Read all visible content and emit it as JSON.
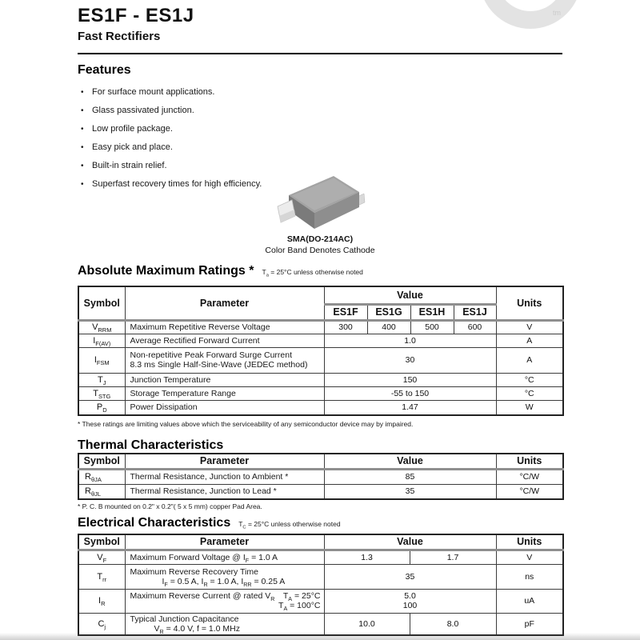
{
  "header": {
    "title": "ES1F - ES1J",
    "subtitle": "Fast Rectifiers",
    "logo_tm": "tm",
    "logo_color": "#e3e3e3"
  },
  "features": {
    "heading": "Features",
    "bullet": "•",
    "items": [
      "For surface mount applications.",
      "Glass passivated junction.",
      "Low profile package.",
      "Easy pick and place.",
      "Built-in strain relief.",
      "Superfast recovery times for high efficiency."
    ]
  },
  "package": {
    "name": "SMA(DO-214AC)",
    "caption": "Color Band Denotes Cathode"
  },
  "abs_max": {
    "heading": "Absolute Maximum Ratings *",
    "note": [
      [
        "T",
        0
      ],
      [
        "a",
        1
      ],
      [
        " = 25°C unless otherwise noted",
        0
      ]
    ],
    "headers": {
      "symbol": "Symbol",
      "parameter": "Parameter",
      "value": "Value",
      "units": "Units"
    },
    "parts": [
      "ES1F",
      "ES1G",
      "ES1H",
      "ES1J"
    ],
    "rows": [
      {
        "sym": [
          [
            "V",
            0
          ],
          [
            "RRM",
            1
          ]
        ],
        "p1": "Maximum Repetitive Reverse Voltage",
        "vals": [
          "300",
          "400",
          "500",
          "600"
        ],
        "units": "V"
      },
      {
        "sym": [
          [
            "I",
            0
          ],
          [
            "F(AV)",
            1
          ]
        ],
        "p1": "Average Rectified Forward Current",
        "val": "1.0",
        "units": "A"
      },
      {
        "sym": [
          [
            "I",
            0
          ],
          [
            "FSM",
            1
          ]
        ],
        "p1": "Non-repetitive Peak Forward Surge Current",
        "p2": "8.3 ms Single Half-Sine-Wave (JEDEC method)",
        "val": "30",
        "units": "A"
      },
      {
        "sym": [
          [
            "T",
            0
          ],
          [
            "J",
            1
          ]
        ],
        "p1": "Junction Temperature",
        "val": "150",
        "units": "°C"
      },
      {
        "sym": [
          [
            "T",
            0
          ],
          [
            "STG",
            1
          ]
        ],
        "p1": "Storage Temperature Range",
        "val": "-55 to 150",
        "units": "°C"
      },
      {
        "sym": [
          [
            "P",
            0
          ],
          [
            "D",
            1
          ]
        ],
        "p1": "Power Dissipation",
        "val": "1.47",
        "units": "W"
      }
    ],
    "footnote": "* These ratings are limiting values above which the serviceability of any semiconductor device may by impaired."
  },
  "thermal": {
    "heading": "Thermal Characteristics",
    "headers": {
      "symbol": "Symbol",
      "parameter": "Parameter",
      "value": "Value",
      "units": "Units"
    },
    "rows": [
      {
        "sym": [
          [
            "R",
            0
          ],
          [
            "θJA",
            1
          ]
        ],
        "p1": "Thermal Resistance, Junction to Ambient *",
        "val": "85",
        "units": "°C/W"
      },
      {
        "sym": [
          [
            "R",
            0
          ],
          [
            "θJL",
            1
          ]
        ],
        "p1": "Thermal Resistance, Junction to Lead *",
        "val": "35",
        "units": "°C/W"
      }
    ],
    "footnote": "* P. C. B mounted on 0.2\" x 0.2\"( 5 x 5 mm) copper Pad Area."
  },
  "electrical": {
    "heading": "Electrical Characteristics",
    "note": [
      [
        "T",
        0
      ],
      [
        "C",
        1
      ],
      [
        " = 25°C unless otherwise noted",
        0
      ]
    ],
    "headers": {
      "symbol": "Symbol",
      "parameter": "Parameter",
      "value": "Value",
      "units": "Units"
    },
    "rows": [
      {
        "sym": [
          [
            "V",
            0
          ],
          [
            "F",
            1
          ]
        ],
        "p1": [
          [
            "Maximum Forward Voltage  @ I",
            0
          ],
          [
            "F",
            1
          ],
          [
            " = 1.0 A",
            0
          ]
        ],
        "v1": "1.3",
        "v2": "1.7",
        "units": "V"
      },
      {
        "sym": [
          [
            "T",
            0
          ],
          [
            "rr",
            1
          ]
        ],
        "p1": [
          [
            "Maximum Reverse Recovery Time",
            0
          ]
        ],
        "p2": [
          [
            "I",
            0
          ],
          [
            "F",
            1
          ],
          [
            " = 0.5 A, I",
            0
          ],
          [
            "R",
            1
          ],
          [
            " = 1.0 A, I",
            0
          ],
          [
            "RR",
            1
          ],
          [
            " = 0.25 A",
            0
          ]
        ],
        "val": "35",
        "units": "ns"
      },
      {
        "sym": [
          [
            "I",
            0
          ],
          [
            "R",
            1
          ]
        ],
        "p1": [
          [
            "Maximum Reverse Current   @ rated V",
            0
          ],
          [
            "R",
            1
          ]
        ],
        "p1r": [
          [
            "T",
            0
          ],
          [
            "A",
            1
          ],
          [
            " =  25°C",
            0
          ]
        ],
        "p2r": [
          [
            "T",
            0
          ],
          [
            "A",
            1
          ],
          [
            " = 100°C",
            0
          ]
        ],
        "val1": "5.0",
        "val2": "100",
        "units": "uA"
      },
      {
        "sym": [
          [
            "C",
            0
          ],
          [
            "j",
            1
          ]
        ],
        "p1": [
          [
            "Typical Junction Capacitance",
            0
          ]
        ],
        "p2": [
          [
            "V",
            0
          ],
          [
            "R",
            1
          ],
          [
            " = 4.0 V, f = 1.0 MHz",
            0
          ]
        ],
        "v1": "10.0",
        "v2": "8.0",
        "units": "pF"
      }
    ]
  }
}
